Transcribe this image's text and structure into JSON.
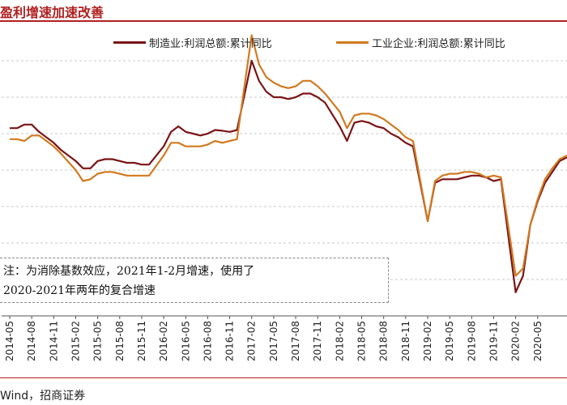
{
  "header": {
    "title": "盈利增速加速改善"
  },
  "source": {
    "text": "Wind，招商证券"
  },
  "note": {
    "line1": "注：为消除基数效应，2021年1-2月增速，使用了",
    "line2": "2020-2021年两年的复合增速"
  },
  "colors": {
    "series1": "#7a1416",
    "series2": "#d17a1f",
    "grid": "#c8c8c8",
    "accent": "#b02020"
  },
  "chart_data": {
    "type": "line",
    "title": "盈利增速加速改善",
    "xlabel": "",
    "ylabel": "",
    "ylim": [
      -40,
      40
    ],
    "grid": true,
    "legend_position": "top-right",
    "x": [
      "2014-05",
      "2014-06",
      "2014-07",
      "2014-08",
      "2014-09",
      "2014-10",
      "2014-11",
      "2014-12",
      "2015-01",
      "2015-02",
      "2015-03",
      "2015-04",
      "2015-05",
      "2015-06",
      "2015-07",
      "2015-08",
      "2015-09",
      "2015-10",
      "2015-11",
      "2015-12",
      "2016-01",
      "2016-02",
      "2016-03",
      "2016-04",
      "2016-05",
      "2016-06",
      "2016-07",
      "2016-08",
      "2016-09",
      "2016-10",
      "2016-11",
      "2016-12",
      "2017-01",
      "2017-02",
      "2017-03",
      "2017-04",
      "2017-05",
      "2017-06",
      "2017-07",
      "2017-08",
      "2017-09",
      "2017-10",
      "2017-11",
      "2017-12",
      "2018-01",
      "2018-02",
      "2018-03",
      "2018-04",
      "2018-05",
      "2018-06",
      "2018-07",
      "2018-08",
      "2018-09",
      "2018-10",
      "2018-11",
      "2018-12",
      "2019-01",
      "2019-02",
      "2019-03",
      "2019-04",
      "2019-05",
      "2019-06",
      "2019-07",
      "2019-08",
      "2019-09",
      "2019-10",
      "2019-11",
      "2019-12",
      "2020-01",
      "2020-02",
      "2020-03",
      "2020-04",
      "2020-05",
      "2020-06",
      "2020-07",
      "2020-08",
      "2020-09"
    ],
    "tick_labels": [
      "2014-05",
      "2014-08",
      "2014-11",
      "2015-02",
      "2015-05",
      "2015-08",
      "2015-11",
      "2016-02",
      "2016-05",
      "2016-08",
      "2016-11",
      "2017-02",
      "2017-05",
      "2017-08",
      "2017-11",
      "2018-02",
      "2018-05",
      "2018-08",
      "2018-11",
      "2019-02",
      "2019-05",
      "2019-08",
      "2019-11",
      "2020-02",
      "2020-05"
    ],
    "series": [
      {
        "name": "制造业:利润总额:累计同比",
        "color": "#7a1416",
        "values": [
          11.5,
          11.5,
          12.5,
          12.5,
          10.5,
          9.0,
          7.5,
          5.5,
          null,
          2.5,
          0.5,
          0.5,
          2.5,
          3.0,
          3.0,
          2.5,
          2.0,
          2.0,
          1.5,
          1.5,
          null,
          6.5,
          10.5,
          12.0,
          10.5,
          10.0,
          9.5,
          10.0,
          11.0,
          10.8,
          10.5,
          11.0,
          null,
          30.0,
          24.5,
          21.5,
          20.0,
          20.0,
          19.5,
          20.0,
          21.0,
          21.0,
          20.0,
          18.5,
          null,
          12.0,
          8.0,
          13.0,
          13.5,
          13.0,
          12.0,
          11.5,
          10.0,
          9.0,
          7.5,
          6.5,
          null,
          -14.0,
          -3.5,
          -2.5,
          -2.5,
          -2.5,
          -2.0,
          -1.5,
          -1.5,
          -2.0,
          -3.0,
          -2.5,
          null,
          -33.5,
          -29.0,
          -15.0,
          -8.5,
          -3.5,
          -0.5,
          2.5,
          3.5
        ]
      },
      {
        "name": "工业企业:利润总额:累计同比",
        "color": "#d17a1f",
        "values": [
          8.5,
          8.5,
          8.0,
          9.5,
          9.5,
          8.0,
          6.5,
          4.5,
          null,
          0.0,
          -3.0,
          -2.5,
          -1.0,
          -0.5,
          -0.5,
          -1.0,
          -1.5,
          -1.5,
          -1.5,
          -1.5,
          null,
          4.0,
          7.5,
          7.5,
          6.5,
          6.5,
          6.5,
          7.0,
          8.0,
          7.5,
          8.0,
          8.5,
          null,
          37.0,
          29.0,
          25.5,
          24.0,
          23.0,
          22.5,
          23.0,
          24.5,
          24.5,
          23.0,
          21.0,
          null,
          16.0,
          11.5,
          15.0,
          15.5,
          15.5,
          15.0,
          14.0,
          12.5,
          11.0,
          9.0,
          8.0,
          null,
          -14.0,
          -3.0,
          -1.5,
          -1.0,
          -1.0,
          -0.5,
          -0.5,
          -1.0,
          -2.0,
          -1.5,
          -2.0,
          null,
          -29.0,
          -27.0,
          -15.0,
          -8.0,
          -2.5,
          0.5,
          3.0,
          4.0
        ]
      }
    ]
  }
}
